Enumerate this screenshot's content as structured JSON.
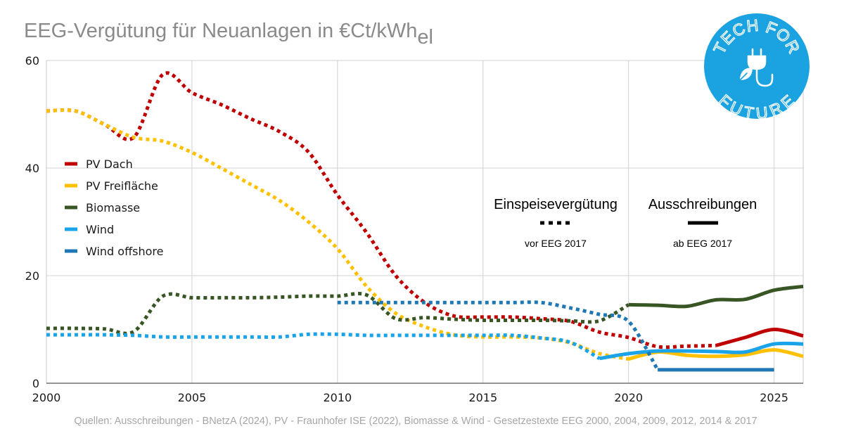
{
  "title": {
    "main": "EEG-Vergütung für Neuanlagen in €Ct/kWh",
    "sub": "el"
  },
  "sources": "Quellen: Ausschreibungen - BNetzA (2024), PV - Fraunhofer ISE (2022), Biomasse & Wind - Gesetzestexte EEG 2000, 2004, 2009, 2012, 2014 & 2017",
  "logo": {
    "top_text": "TECH FOR",
    "bottom_text": "FUTURE",
    "color": "#1aa3e0",
    "icon": "plug-with-leaf-icon"
  },
  "annotations": {
    "feed_in": {
      "title": "Einspeisevergütung",
      "subtitle": "vor EEG 2017",
      "style": "dotted"
    },
    "auctions": {
      "title": "Ausschreibungen",
      "subtitle": "ab EEG 2017",
      "style": "solid"
    }
  },
  "chart_data": {
    "type": "line",
    "title": "EEG-Vergütung für Neuanlagen in €Ct/kWhel",
    "xlabel": "",
    "ylabel": "",
    "xlim": [
      2000,
      2026
    ],
    "ylim": [
      0,
      60
    ],
    "x_ticks": [
      2000,
      2005,
      2010,
      2015,
      2020,
      2025
    ],
    "y_ticks": [
      0,
      20,
      40,
      60
    ],
    "grid": true,
    "legend_position": "left",
    "series": [
      {
        "name": "PV Dach",
        "color": "#c00000",
        "segments": [
          {
            "style": "dotted",
            "points": [
              [
                2000,
                50.6
              ],
              [
                2001,
                50.6
              ],
              [
                2002,
                48.1
              ],
              [
                2003,
                45.7
              ],
              [
                2004,
                57.4
              ],
              [
                2005,
                54.0
              ],
              [
                2006,
                51.8
              ],
              [
                2007,
                49.2
              ],
              [
                2008,
                46.8
              ],
              [
                2009,
                43.0
              ],
              [
                2010,
                35.0
              ],
              [
                2011,
                28.0
              ],
              [
                2012,
                20.0
              ],
              [
                2013,
                15.0
              ],
              [
                2014,
                12.5
              ],
              [
                2015,
                12.3
              ],
              [
                2016,
                12.3
              ],
              [
                2017,
                12.0
              ],
              [
                2018,
                11.5
              ],
              [
                2019,
                9.5
              ],
              [
                2020,
                8.5
              ],
              [
                2021,
                6.8
              ],
              [
                2022,
                6.9
              ],
              [
                2023,
                7.0
              ]
            ]
          },
          {
            "style": "solid",
            "points": [
              [
                2023,
                7.0
              ],
              [
                2024,
                8.5
              ],
              [
                2025,
                10.0
              ],
              [
                2026,
                8.8
              ]
            ]
          }
        ]
      },
      {
        "name": "PV Freifläche",
        "color": "#ffc000",
        "segments": [
          {
            "style": "dotted",
            "points": [
              [
                2000,
                50.6
              ],
              [
                2001,
                50.6
              ],
              [
                2002,
                48.1
              ],
              [
                2003,
                45.7
              ],
              [
                2004,
                45.0
              ],
              [
                2005,
                42.9
              ],
              [
                2006,
                40.0
              ],
              [
                2007,
                37.0
              ],
              [
                2008,
                34.0
              ],
              [
                2009,
                30.0
              ],
              [
                2010,
                25.0
              ],
              [
                2011,
                18.0
              ],
              [
                2012,
                13.0
              ],
              [
                2013,
                10.5
              ],
              [
                2014,
                9.0
              ],
              [
                2015,
                8.6
              ],
              [
                2016,
                8.6
              ],
              [
                2017,
                8.4
              ],
              [
                2018,
                7.5
              ],
              [
                2019,
                5.5
              ],
              [
                2020,
                4.5
              ]
            ]
          },
          {
            "style": "solid",
            "points": [
              [
                2020,
                4.5
              ],
              [
                2021,
                5.8
              ],
              [
                2022,
                5.2
              ],
              [
                2023,
                5.0
              ],
              [
                2024,
                5.3
              ],
              [
                2025,
                6.2
              ],
              [
                2026,
                5.0
              ]
            ]
          }
        ]
      },
      {
        "name": "Biomasse",
        "color": "#375623",
        "segments": [
          {
            "style": "dotted",
            "points": [
              [
                2000,
                10.2
              ],
              [
                2001,
                10.2
              ],
              [
                2002,
                10.1
              ],
              [
                2003,
                9.6
              ],
              [
                2004,
                16.2
              ],
              [
                2005,
                15.9
              ],
              [
                2006,
                15.9
              ],
              [
                2007,
                15.9
              ],
              [
                2008,
                16.0
              ],
              [
                2009,
                16.2
              ],
              [
                2010,
                16.2
              ],
              [
                2011,
                16.4
              ],
              [
                2012,
                12.0
              ],
              [
                2013,
                12.2
              ],
              [
                2014,
                11.9
              ],
              [
                2015,
                11.7
              ],
              [
                2016,
                11.7
              ],
              [
                2017,
                11.7
              ],
              [
                2018,
                11.6
              ],
              [
                2019,
                11.6
              ],
              [
                2020,
                14.6
              ]
            ]
          },
          {
            "style": "solid",
            "points": [
              [
                2020,
                14.6
              ],
              [
                2021,
                14.5
              ],
              [
                2022,
                14.3
              ],
              [
                2023,
                15.5
              ],
              [
                2024,
                15.6
              ],
              [
                2025,
                17.3
              ],
              [
                2026,
                18.0
              ]
            ]
          }
        ]
      },
      {
        "name": "Wind",
        "color": "#1aa3e8",
        "segments": [
          {
            "style": "dotted",
            "points": [
              [
                2000,
                9.0
              ],
              [
                2001,
                9.0
              ],
              [
                2002,
                9.0
              ],
              [
                2003,
                8.9
              ],
              [
                2004,
                8.6
              ],
              [
                2005,
                8.6
              ],
              [
                2006,
                8.6
              ],
              [
                2007,
                8.6
              ],
              [
                2008,
                8.6
              ],
              [
                2009,
                9.1
              ],
              [
                2010,
                9.1
              ],
              [
                2011,
                8.9
              ],
              [
                2012,
                8.9
              ],
              [
                2013,
                8.9
              ],
              [
                2014,
                8.9
              ],
              [
                2015,
                8.9
              ],
              [
                2016,
                8.9
              ],
              [
                2017,
                8.4
              ],
              [
                2018,
                7.6
              ],
              [
                2019,
                4.6
              ]
            ]
          },
          {
            "style": "solid",
            "points": [
              [
                2019,
                4.6
              ],
              [
                2020,
                5.5
              ],
              [
                2021,
                6.0
              ],
              [
                2022,
                6.0
              ],
              [
                2023,
                5.9
              ],
              [
                2024,
                5.8
              ],
              [
                2025,
                7.3
              ],
              [
                2026,
                7.3
              ]
            ]
          }
        ]
      },
      {
        "name": "Wind offshore",
        "color": "#1f78b4",
        "segments": [
          {
            "style": "dotted",
            "points": [
              [
                2010,
                15.0
              ],
              [
                2011,
                15.0
              ],
              [
                2012,
                15.0
              ],
              [
                2013,
                15.0
              ],
              [
                2014,
                15.0
              ],
              [
                2015,
                15.0
              ],
              [
                2016,
                15.0
              ],
              [
                2017,
                15.0
              ],
              [
                2018,
                14.0
              ],
              [
                2019,
                12.8
              ],
              [
                2020,
                11.5
              ],
              [
                2021,
                2.5
              ]
            ]
          },
          {
            "style": "solid",
            "points": [
              [
                2021,
                2.5
              ],
              [
                2022,
                2.5
              ],
              [
                2023,
                2.5
              ],
              [
                2024,
                2.5
              ],
              [
                2025,
                2.5
              ]
            ]
          }
        ]
      }
    ]
  }
}
